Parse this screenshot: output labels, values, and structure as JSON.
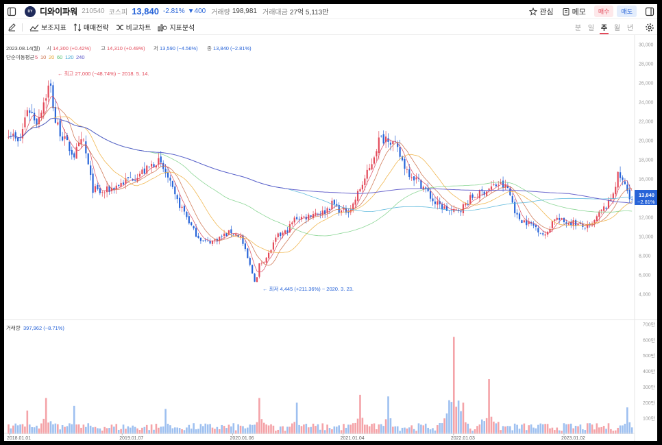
{
  "header": {
    "logo_text": "DY",
    "name": "디와이파워",
    "code": "210540",
    "market": "코스피",
    "price": "13,840",
    "change_pct": "-2.81%",
    "change_abs": "▼400",
    "volume_label": "거래량",
    "volume": "198,981",
    "amount_label": "거래대금",
    "amount": "27억 5,113만",
    "favorite_label": "관심",
    "memo_label": "메모",
    "buy_label": "매수",
    "sell_label": "매도"
  },
  "toolbar": {
    "indicators_label": "보조지표",
    "strategy_label": "매매전략",
    "compare_label": "비교차트",
    "analysis_label": "지표분석",
    "periods": [
      "분",
      "일",
      "주",
      "월",
      "년"
    ],
    "active_period": "주"
  },
  "info": {
    "date": "2023.08.14(월)",
    "open_label": "시",
    "open": "14,300 (+0.42%)",
    "high_label": "고",
    "high": "14,310 (+0.49%)",
    "low_label": "저",
    "low": "13,590 (−4.56%)",
    "close_label": "종",
    "close": "13,840 (−2.81%)",
    "ma_label": "단순이동평균",
    "ma_periods": [
      "5",
      "10",
      "20",
      "60",
      "120",
      "240"
    ]
  },
  "annotations": {
    "max": "← 최고 27,000 (−48.74%) − 2018. 5. 14.",
    "min": "← 최저 4,445 (+211.36%) − 2020. 3. 23."
  },
  "price_tag": {
    "price": "13,840",
    "pct": "−2.81%"
  },
  "volume_info": {
    "label": "거래량",
    "value": "397,962 (−8.71%)"
  },
  "colors": {
    "up": "#e34a5a",
    "down": "#2864d8",
    "vol_up": "#f4a3a8",
    "vol_down": "#9ec0f0",
    "ma": [
      "#d94d63",
      "#cc6f4a",
      "#f0b040",
      "#7ed18a",
      "#4fb3d9",
      "#5a55c8"
    ]
  },
  "chart_data": [
    {
      "type": "line",
      "title": "",
      "x_ticks": [
        "2018.01.01",
        "2019.01.07",
        "2020.01.06",
        "2021.01.04",
        "2022.01.03",
        "2023.01.02"
      ],
      "y_ticks": [
        "4,000",
        "6,000",
        "8,000",
        "10,000",
        "12,000",
        "14,000",
        "16,000",
        "18,000",
        "20,000",
        "22,000",
        "24,000",
        "26,000",
        "28,000",
        "30,000"
      ],
      "ylim": [
        2000,
        30000
      ],
      "grid": false,
      "series": [
        {
          "name": "종가",
          "points": [
            [
              "2018-01-01",
              21000
            ],
            [
              "2018-02-01",
              19500
            ],
            [
              "2018-03-01",
              23500
            ],
            [
              "2018-04-01",
              22000
            ],
            [
              "2018-05-14",
              26000
            ],
            [
              "2018-06-01",
              22000
            ],
            [
              "2018-07-01",
              20000
            ],
            [
              "2018-08-01",
              18500
            ],
            [
              "2018-09-01",
              20000
            ],
            [
              "2018-10-01",
              15000
            ],
            [
              "2018-11-01",
              14500
            ],
            [
              "2018-12-01",
              15000
            ],
            [
              "2019-02-01",
              16000
            ],
            [
              "2019-03-01",
              16500
            ],
            [
              "2019-04-01",
              17000
            ],
            [
              "2019-05-01",
              18000
            ],
            [
              "2019-06-01",
              16500
            ],
            [
              "2019-07-01",
              14000
            ],
            [
              "2019-08-01",
              12500
            ],
            [
              "2019-09-01",
              10500
            ],
            [
              "2019-10-01",
              9500
            ],
            [
              "2019-11-01",
              9500
            ],
            [
              "2019-12-01",
              10000
            ],
            [
              "2020-01-01",
              10500
            ],
            [
              "2020-02-01",
              10000
            ],
            [
              "2020-03-23",
              5000
            ],
            [
              "2020-04-01",
              7000
            ],
            [
              "2020-05-01",
              8000
            ],
            [
              "2020-06-01",
              10000
            ],
            [
              "2020-07-01",
              10500
            ],
            [
              "2020-08-01",
              12000
            ],
            [
              "2020-09-01",
              12000
            ],
            [
              "2020-10-01",
              12500
            ],
            [
              "2020-11-01",
              12500
            ],
            [
              "2020-12-01",
              13500
            ],
            [
              "2021-01-01",
              12500
            ],
            [
              "2021-02-01",
              13000
            ],
            [
              "2021-03-01",
              15000
            ],
            [
              "2021-04-01",
              17000
            ],
            [
              "2021-05-01",
              20000
            ],
            [
              "2021-06-01",
              20500
            ],
            [
              "2021-07-01",
              19000
            ],
            [
              "2021-08-01",
              17000
            ],
            [
              "2021-09-01",
              16000
            ],
            [
              "2021-10-01",
              15000
            ],
            [
              "2021-11-01",
              13500
            ],
            [
              "2021-12-01",
              13000
            ],
            [
              "2022-01-01",
              12500
            ],
            [
              "2022-02-01",
              13000
            ],
            [
              "2022-03-01",
              14000
            ],
            [
              "2022-04-01",
              14500
            ],
            [
              "2022-05-01",
              15000
            ],
            [
              "2022-06-01",
              15500
            ],
            [
              "2022-07-01",
              15000
            ],
            [
              "2022-08-01",
              12000
            ],
            [
              "2022-09-01",
              11500
            ],
            [
              "2022-10-01",
              11000
            ],
            [
              "2022-11-01",
              10000
            ],
            [
              "2022-12-01",
              12000
            ],
            [
              "2023-01-01",
              11500
            ],
            [
              "2023-02-01",
              11500
            ],
            [
              "2023-03-01",
              11000
            ],
            [
              "2023-04-01",
              11000
            ],
            [
              "2023-05-01",
              12500
            ],
            [
              "2023-06-01",
              13500
            ],
            [
              "2023-07-01",
              16500
            ],
            [
              "2023-08-14",
              13840
            ]
          ]
        }
      ]
    },
    {
      "type": "bar",
      "title": "",
      "y_ticks": [
        "100만",
        "200만",
        "300만",
        "400만",
        "500만",
        "600만",
        "700만"
      ],
      "ylim": [
        0,
        7000000
      ],
      "series": [
        {
          "name": "거래량",
          "points": [
            [
              "2018-03-01",
              1500000
            ],
            [
              "2018-05-01",
              2300000
            ],
            [
              "2018-08-01",
              1800000
            ],
            [
              "2019-06-01",
              1600000
            ],
            [
              "2020-04-01",
              2300000
            ],
            [
              "2020-08-01",
              2000000
            ],
            [
              "2021-03-01",
              2500000
            ],
            [
              "2021-06-01",
              2400000
            ],
            [
              "2022-01-03",
              6200000
            ],
            [
              "2022-02-01",
              2000000
            ],
            [
              "2022-05-01",
              3500000
            ],
            [
              "2023-08-01",
              1700000
            ]
          ]
        }
      ]
    }
  ]
}
